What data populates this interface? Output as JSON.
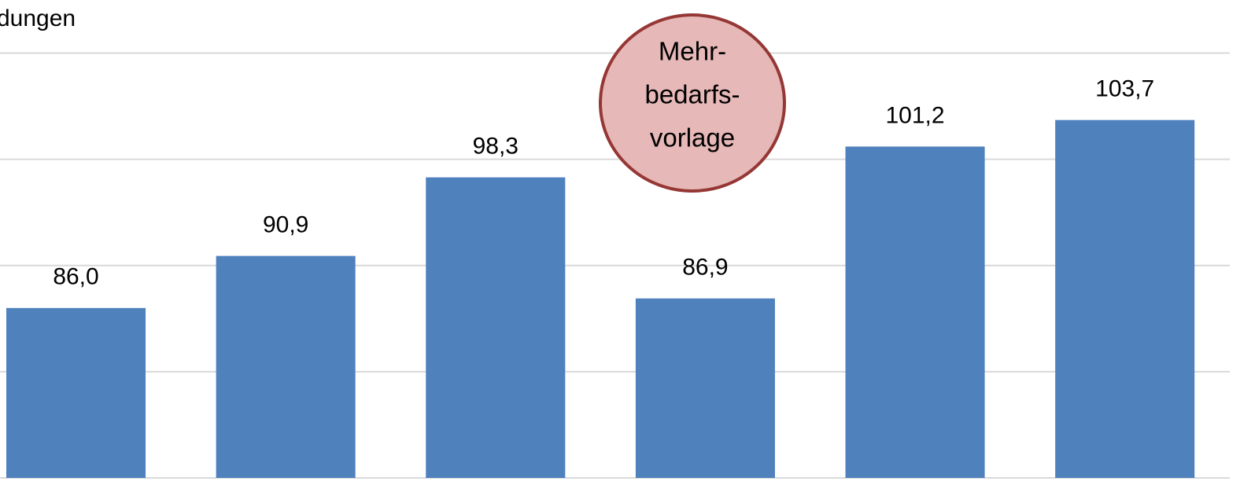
{
  "chart_data": {
    "type": "bar",
    "title": "dungen",
    "values": [
      86.0,
      90.9,
      98.3,
      86.9,
      101.2,
      103.7
    ],
    "value_labels": [
      "86,0",
      "90,9",
      "98,3",
      "86,9",
      "101,2",
      "103,7"
    ],
    "color": "#4f81bd",
    "ylim": [
      70,
      115
    ],
    "yticks": [
      70,
      80,
      90,
      100,
      110
    ],
    "grid": true,
    "annotation": {
      "lines": [
        "Mehr-",
        "bedarfs-",
        "vorlage"
      ],
      "fill": "#e6b8b7",
      "stroke": "#953735"
    }
  }
}
